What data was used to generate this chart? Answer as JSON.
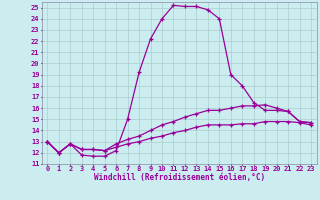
{
  "xlabel": "Windchill (Refroidissement éolien,°C)",
  "xlim": [
    -0.5,
    23.5
  ],
  "ylim": [
    11,
    25.5
  ],
  "yticks": [
    11,
    12,
    13,
    14,
    15,
    16,
    17,
    18,
    19,
    20,
    21,
    22,
    23,
    24,
    25
  ],
  "xticks": [
    0,
    1,
    2,
    3,
    4,
    5,
    6,
    7,
    8,
    9,
    10,
    11,
    12,
    13,
    14,
    15,
    16,
    17,
    18,
    19,
    20,
    21,
    22,
    23
  ],
  "bg_color": "#ccedf0",
  "line_color": "#990099",
  "line1_x": [
    0,
    1,
    2,
    3,
    4,
    5,
    6,
    7,
    8,
    9,
    10,
    11,
    12,
    13,
    14,
    15,
    16,
    17,
    18,
    19,
    20,
    21,
    22,
    23
  ],
  "line1_y": [
    13.0,
    12.0,
    12.8,
    11.8,
    11.7,
    11.7,
    12.2,
    15.0,
    19.2,
    22.2,
    24.0,
    25.2,
    25.1,
    25.1,
    24.8,
    24.0,
    19.0,
    18.0,
    16.5,
    15.8,
    15.8,
    15.7,
    14.8,
    14.7
  ],
  "line2_x": [
    0,
    1,
    2,
    3,
    4,
    5,
    6,
    7,
    8,
    9,
    10,
    11,
    12,
    13,
    14,
    15,
    16,
    17,
    18,
    19,
    20,
    21,
    22,
    23
  ],
  "line2_y": [
    13.0,
    12.0,
    12.8,
    12.3,
    12.3,
    12.2,
    12.8,
    13.2,
    13.5,
    14.0,
    14.5,
    14.8,
    15.2,
    15.5,
    15.8,
    15.8,
    16.0,
    16.2,
    16.2,
    16.3,
    16.0,
    15.7,
    14.8,
    14.7
  ],
  "line3_x": [
    0,
    1,
    2,
    3,
    4,
    5,
    6,
    7,
    8,
    9,
    10,
    11,
    12,
    13,
    14,
    15,
    16,
    17,
    18,
    19,
    20,
    21,
    22,
    23
  ],
  "line3_y": [
    13.0,
    12.0,
    12.8,
    12.3,
    12.3,
    12.2,
    12.5,
    12.8,
    13.0,
    13.3,
    13.5,
    13.8,
    14.0,
    14.3,
    14.5,
    14.5,
    14.5,
    14.6,
    14.6,
    14.8,
    14.8,
    14.8,
    14.7,
    14.5
  ]
}
